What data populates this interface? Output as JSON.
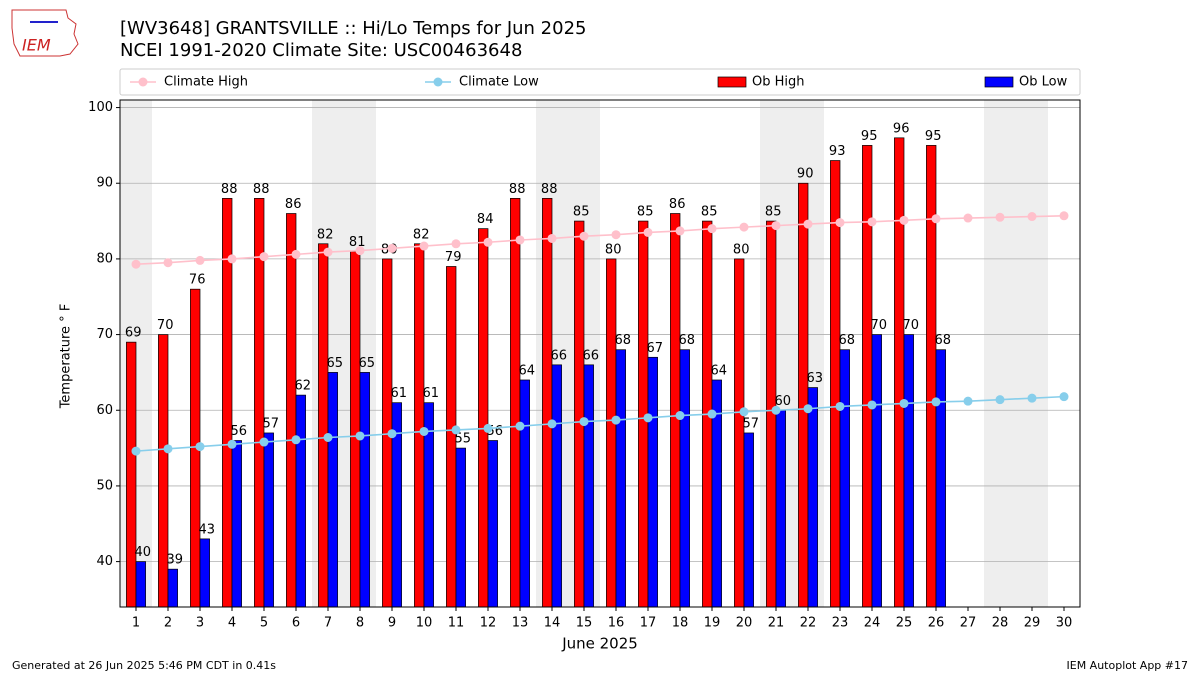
{
  "logo_text": "IEM",
  "chart_data": {
    "type": "bar_line",
    "title": "[WV3648] GRANTSVILLE :: Hi/Lo Temps for Jun 2025",
    "subtitle": "NCEI 1991-2020 Climate Site: USC00463648",
    "xlabel": "June 2025",
    "ylabel": "Temperature ° F",
    "footer_left": "Generated at 26 Jun 2025 5:46 PM CDT in 0.41s",
    "footer_right": "IEM Autoplot App #17",
    "x": [
      1,
      2,
      3,
      4,
      5,
      6,
      7,
      8,
      9,
      10,
      11,
      12,
      13,
      14,
      15,
      16,
      17,
      18,
      19,
      20,
      21,
      22,
      23,
      24,
      25,
      26,
      27,
      28,
      29,
      30
    ],
    "xlim": [
      0.5,
      30.5
    ],
    "xticks": [
      1,
      2,
      3,
      4,
      5,
      6,
      7,
      8,
      9,
      10,
      11,
      12,
      13,
      14,
      15,
      16,
      17,
      18,
      19,
      20,
      21,
      22,
      23,
      24,
      25,
      26,
      27,
      28,
      29,
      30
    ],
    "ylim": [
      34,
      101
    ],
    "yticks": [
      40,
      50,
      60,
      70,
      80,
      90,
      100
    ],
    "grid": true,
    "shaded_days": [
      1,
      7,
      8,
      14,
      15,
      21,
      22,
      28,
      29
    ],
    "shade_color": "#eeeeee",
    "series": [
      {
        "name": "Climate High",
        "kind": "line",
        "color": "pink",
        "values": [
          79.3,
          79.5,
          79.8,
          80.0,
          80.3,
          80.6,
          80.9,
          81.1,
          81.4,
          81.7,
          82.0,
          82.2,
          82.5,
          82.7,
          83.0,
          83.2,
          83.5,
          83.7,
          84.0,
          84.2,
          84.4,
          84.6,
          84.8,
          84.9,
          85.1,
          85.3,
          85.4,
          85.5,
          85.6,
          85.7
        ]
      },
      {
        "name": "Climate Low",
        "kind": "line",
        "color": "skyblue",
        "values": [
          54.6,
          54.9,
          55.2,
          55.5,
          55.8,
          56.1,
          56.4,
          56.6,
          56.9,
          57.2,
          57.4,
          57.6,
          57.9,
          58.2,
          58.5,
          58.7,
          59.0,
          59.3,
          59.5,
          59.8,
          60.0,
          60.2,
          60.5,
          60.7,
          60.9,
          61.1,
          61.2,
          61.4,
          61.6,
          61.8
        ]
      },
      {
        "name": "Ob High",
        "kind": "bar",
        "color": "red",
        "values": [
          69,
          70,
          76,
          88,
          88,
          86,
          82,
          81,
          80,
          82,
          79,
          84,
          88,
          88,
          85,
          80,
          85,
          86,
          85,
          80,
          85,
          90,
          93,
          95,
          96,
          95,
          null,
          null,
          null,
          null
        ]
      },
      {
        "name": "Ob Low",
        "kind": "bar",
        "color": "blue",
        "values": [
          40,
          39,
          43,
          56,
          57,
          62,
          65,
          65,
          61,
          61,
          55,
          56,
          64,
          66,
          66,
          68,
          67,
          68,
          64,
          57,
          60,
          63,
          68,
          70,
          70,
          68,
          null,
          null,
          null,
          null
        ]
      }
    ]
  }
}
